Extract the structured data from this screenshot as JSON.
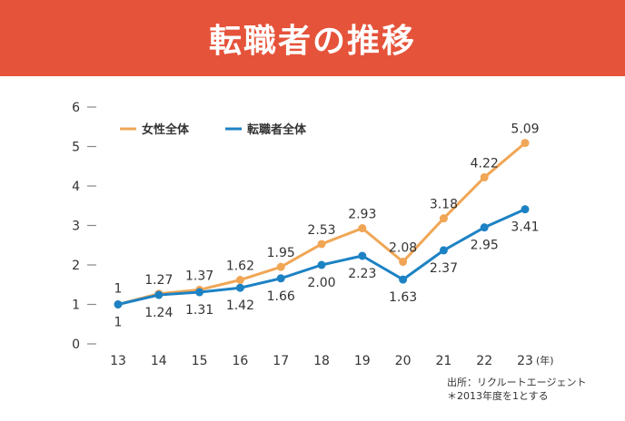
{
  "header": {
    "title": "転職者の推移"
  },
  "colors": {
    "banner": "#e5533a",
    "women": "#f0a655",
    "all": "#1d82c4",
    "axis": "#888888",
    "text": "#333333"
  },
  "source": {
    "line1": "出所：リクルートエージェント",
    "line2": "＊2013年度を1とする"
  },
  "chart_data": {
    "type": "line",
    "x": [
      "13",
      "14",
      "15",
      "16",
      "17",
      "18",
      "19",
      "20",
      "21",
      "22",
      "23"
    ],
    "x_unit": "(年)",
    "ylim": [
      0,
      6
    ],
    "y_ticks": [
      "0",
      "1",
      "2",
      "3",
      "4",
      "5",
      "6"
    ],
    "legend_position": "top-left",
    "grid": false,
    "series": [
      {
        "name": "女性全体",
        "values": [
          1,
          1.27,
          1.37,
          1.62,
          1.95,
          2.53,
          2.93,
          2.08,
          3.18,
          4.22,
          5.09
        ],
        "labels": [
          "1",
          "1.27",
          "1.37",
          "1.62",
          "1.95",
          "2.53",
          "2.93",
          "2.08",
          "3.18",
          "4.22",
          "5.09"
        ]
      },
      {
        "name": "転職者全体",
        "values": [
          1,
          1.24,
          1.31,
          1.42,
          1.66,
          2.0,
          2.23,
          1.63,
          2.37,
          2.95,
          3.41
        ],
        "labels": [
          "1",
          "1.24",
          "1.31",
          "1.42",
          "1.66",
          "2.00",
          "2.23",
          "1.63",
          "2.37",
          "2.95",
          "3.41"
        ]
      }
    ]
  }
}
